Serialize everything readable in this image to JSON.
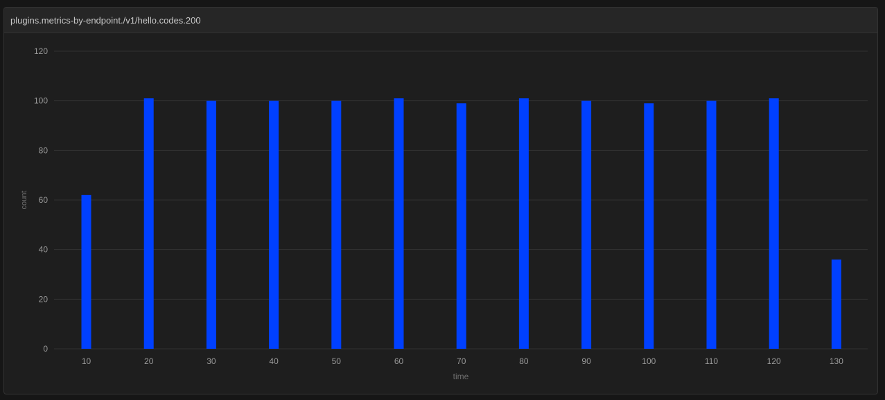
{
  "panel": {
    "title": "plugins.metrics-by-endpoint./v1/hello.codes.200"
  },
  "colors": {
    "background": "#1e1e1e",
    "grid": "#333333",
    "bar": "#0040ff",
    "tick_text": "#9a9a9a",
    "axis_label_text": "#6e6e6e"
  },
  "chart_data": {
    "type": "bar",
    "categories": [
      "10",
      "20",
      "30",
      "40",
      "50",
      "60",
      "70",
      "80",
      "90",
      "100",
      "110",
      "120",
      "130"
    ],
    "values": [
      62,
      101,
      100,
      100,
      100,
      101,
      99,
      101,
      100,
      99,
      100,
      101,
      36
    ],
    "xlabel": "time",
    "ylabel": "count",
    "ylim": [
      0,
      120
    ],
    "yticks": [
      0,
      20,
      40,
      60,
      80,
      100,
      120
    ],
    "grid": true,
    "legend": "none"
  }
}
